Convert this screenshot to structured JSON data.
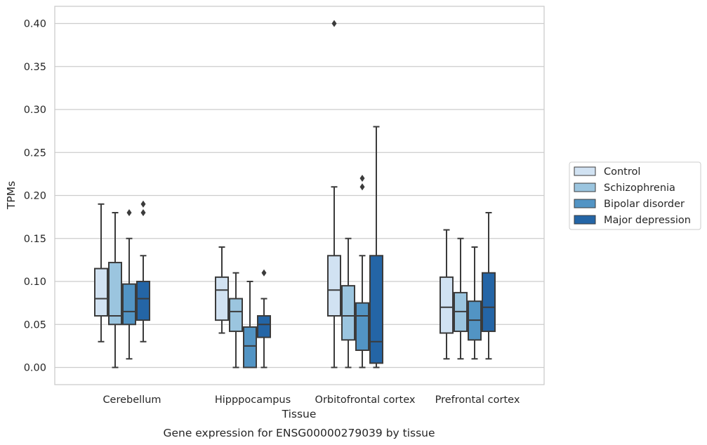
{
  "chart_data": {
    "type": "boxplot",
    "caption": "Gene expression for ENSG00000279039 by tissue",
    "xlabel": "Tissue",
    "ylabel": "TPMs",
    "ylim": [
      -0.02,
      0.42
    ],
    "yticks": [
      "0.00",
      "0.05",
      "0.10",
      "0.15",
      "0.20",
      "0.25",
      "0.30",
      "0.35",
      "0.40"
    ],
    "grid": "horizontal",
    "legend_position": "right",
    "categories": [
      "Cerebellum",
      "Hipppocampus",
      "Orbitofrontal cortex",
      "Prefrontal cortex"
    ],
    "series": [
      {
        "name": "Control",
        "color": "#d1e2f2",
        "boxes": [
          {
            "whisker_low": 0.03,
            "q1": 0.06,
            "median": 0.08,
            "q3": 0.115,
            "whisker_high": 0.19,
            "outliers": []
          },
          {
            "whisker_low": 0.04,
            "q1": 0.055,
            "median": 0.09,
            "q3": 0.105,
            "whisker_high": 0.14,
            "outliers": []
          },
          {
            "whisker_low": 0.0,
            "q1": 0.06,
            "median": 0.09,
            "q3": 0.13,
            "whisker_high": 0.21,
            "outliers": [
              0.4
            ]
          },
          {
            "whisker_low": 0.01,
            "q1": 0.04,
            "median": 0.07,
            "q3": 0.105,
            "whisker_high": 0.16,
            "outliers": []
          }
        ]
      },
      {
        "name": "Schizophrenia",
        "color": "#9bc5df",
        "boxes": [
          {
            "whisker_low": 0.0,
            "q1": 0.05,
            "median": 0.06,
            "q3": 0.122,
            "whisker_high": 0.18,
            "outliers": []
          },
          {
            "whisker_low": 0.0,
            "q1": 0.042,
            "median": 0.065,
            "q3": 0.08,
            "whisker_high": 0.11,
            "outliers": []
          },
          {
            "whisker_low": 0.0,
            "q1": 0.032,
            "median": 0.06,
            "q3": 0.095,
            "whisker_high": 0.15,
            "outliers": []
          },
          {
            "whisker_low": 0.01,
            "q1": 0.042,
            "median": 0.065,
            "q3": 0.087,
            "whisker_high": 0.15,
            "outliers": []
          }
        ]
      },
      {
        "name": "Bipolar disorder",
        "color": "#5294c4",
        "boxes": [
          {
            "whisker_low": 0.01,
            "q1": 0.05,
            "median": 0.065,
            "q3": 0.097,
            "whisker_high": 0.15,
            "outliers": [
              0.18
            ]
          },
          {
            "whisker_low": 0.0,
            "q1": 0.0,
            "median": 0.025,
            "q3": 0.047,
            "whisker_high": 0.1,
            "outliers": []
          },
          {
            "whisker_low": 0.0,
            "q1": 0.02,
            "median": 0.06,
            "q3": 0.075,
            "whisker_high": 0.13,
            "outliers": [
              0.21,
              0.22
            ]
          },
          {
            "whisker_low": 0.01,
            "q1": 0.032,
            "median": 0.055,
            "q3": 0.077,
            "whisker_high": 0.14,
            "outliers": []
          }
        ]
      },
      {
        "name": "Major depression",
        "color": "#2465a6",
        "boxes": [
          {
            "whisker_low": 0.03,
            "q1": 0.055,
            "median": 0.08,
            "q3": 0.1,
            "whisker_high": 0.13,
            "outliers": [
              0.18,
              0.19
            ]
          },
          {
            "whisker_low": 0.0,
            "q1": 0.035,
            "median": 0.05,
            "q3": 0.06,
            "whisker_high": 0.08,
            "outliers": [
              0.11
            ]
          },
          {
            "whisker_low": 0.0,
            "q1": 0.005,
            "median": 0.03,
            "q3": 0.13,
            "whisker_high": 0.28,
            "outliers": []
          },
          {
            "whisker_low": 0.01,
            "q1": 0.042,
            "median": 0.07,
            "q3": 0.11,
            "whisker_high": 0.18,
            "outliers": []
          }
        ]
      }
    ]
  }
}
